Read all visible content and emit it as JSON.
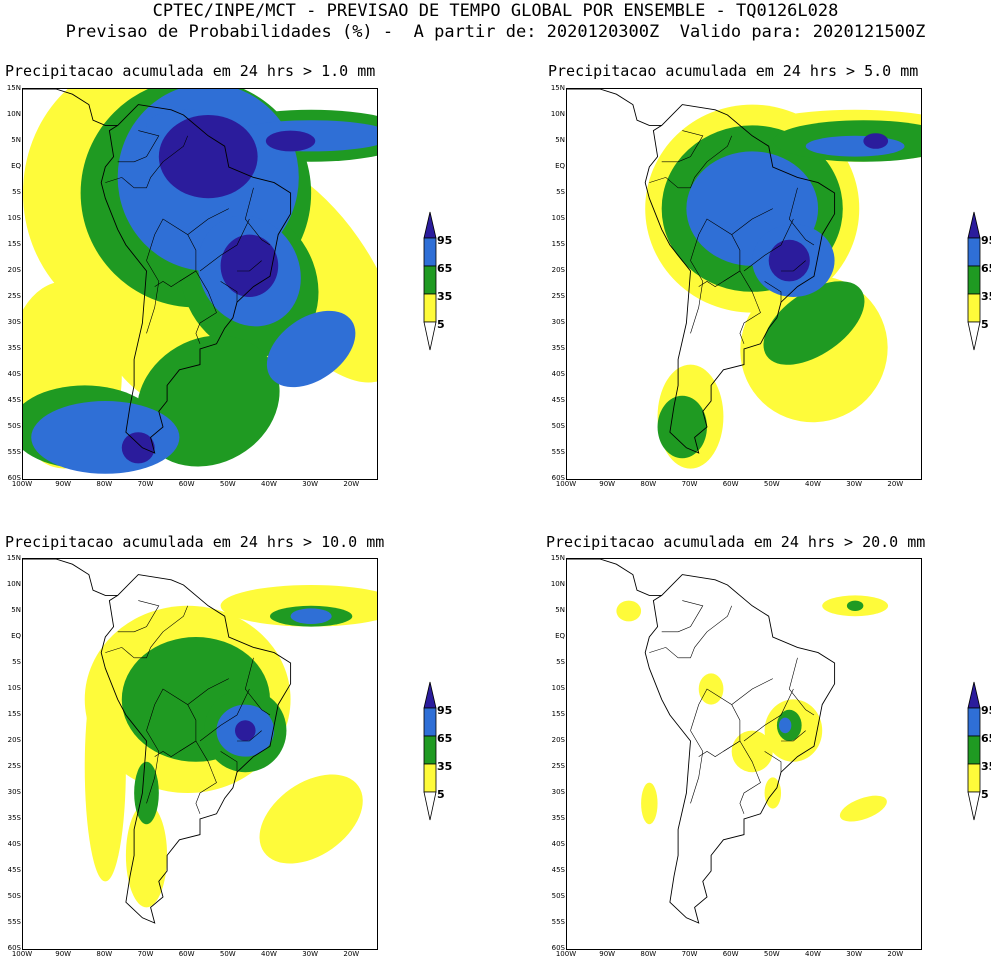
{
  "header": {
    "line1": "CPTEC/INPE/MCT - PREVISAO DE TEMPO GLOBAL POR ENSEMBLE - TQ0126L028",
    "line2": "Previsao de Probabilidades (%) -  A partir de: 2020120300Z  Valido para: 2020121500Z"
  },
  "axes": {
    "lat_labels": [
      "15N",
      "10N",
      "5N",
      "EQ",
      "5S",
      "10S",
      "15S",
      "20S",
      "25S",
      "30S",
      "35S",
      "40S",
      "45S",
      "50S",
      "55S",
      "60S"
    ],
    "lon_labels": [
      "100W",
      "90W",
      "80W",
      "70W",
      "60W",
      "50W",
      "40W",
      "30W",
      "20W"
    ]
  },
  "legend": {
    "levels": [
      "95",
      "65",
      "35",
      "5"
    ],
    "colors": {
      "c95": "#2b1c9c",
      "c65": "#2f6fd6",
      "c35": "#1f9a22",
      "c5": "#fefb3a"
    }
  },
  "panels": [
    {
      "title": "Precipitacao acumulada em 24 hrs > 1.0 mm"
    },
    {
      "title": "Precipitacao acumulada em 24 hrs > 5.0 mm"
    },
    {
      "title": "Precipitacao acumulada em 24 hrs > 10.0 mm"
    },
    {
      "title": "Precipitacao acumulada em 24 hrs > 20.0 mm"
    }
  ]
}
